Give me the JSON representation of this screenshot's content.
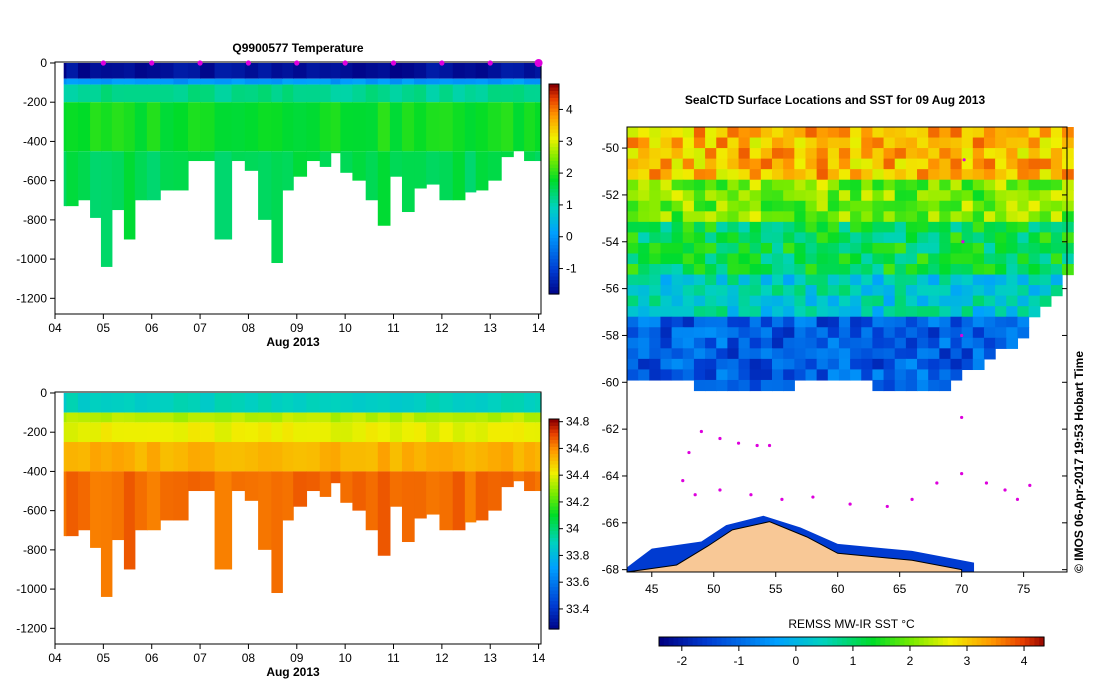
{
  "chart_data": [
    {
      "type": "heatmap",
      "title": "Q9900577  Temperature",
      "xlabel": "Aug 2013",
      "ylabel": "",
      "x_tick_labels": [
        "04",
        "05",
        "06",
        "07",
        "08",
        "09",
        "10",
        "11",
        "12",
        "13",
        "14"
      ],
      "y_ticks": [
        0,
        -200,
        -400,
        -600,
        -800,
        -1000,
        -1200
      ],
      "x_range_days": [
        4,
        14.05
      ],
      "y_range": [
        -1280,
        5
      ],
      "colorbar_ticks": [
        4,
        3,
        2,
        1,
        0,
        -1
      ],
      "colorbar_range": [
        -1.8,
        4.8
      ],
      "profile_times_days": [
        4.12,
        4.35,
        4.6,
        4.85,
        5.05,
        5.3,
        5.55,
        5.75,
        6.05,
        6.3,
        6.6,
        6.9,
        7.1,
        7.5,
        7.8,
        8.05,
        8.35,
        8.6,
        8.8,
        9.05,
        9.35,
        9.6,
        9.8,
        10.0,
        10.3,
        10.55,
        10.8,
        11.05,
        11.3,
        11.55,
        11.8,
        12.1,
        12.35,
        12.6,
        12.8,
        13.1,
        13.35,
        13.6,
        13.8,
        14.05
      ],
      "profile_max_depths": [
        -730,
        -730,
        -700,
        -790,
        -1040,
        -750,
        -900,
        -700,
        -700,
        -650,
        -650,
        -500,
        -500,
        -900,
        -500,
        -550,
        -800,
        -1020,
        -650,
        -580,
        -500,
        -530,
        -460,
        -560,
        -600,
        -700,
        -830,
        -580,
        -760,
        -640,
        -620,
        -700,
        -700,
        -660,
        -650,
        -600,
        -480,
        -450,
        -500,
        -500
      ],
      "surface_markers_days": [
        5,
        6,
        7,
        8,
        9,
        10,
        11,
        12,
        13,
        14
      ],
      "layers": [
        {
          "to_depth": -80,
          "value": -1.6
        },
        {
          "to_depth": -110,
          "value": 0.1
        },
        {
          "to_depth": -200,
          "value": 1.25
        },
        {
          "to_depth": -450,
          "value": 1.9
        },
        {
          "to_depth": -1300,
          "value": 1.6
        }
      ]
    },
    {
      "type": "heatmap",
      "title": "",
      "xlabel": "Aug 2013",
      "ylabel": "",
      "x_tick_labels": [
        "04",
        "05",
        "06",
        "07",
        "08",
        "09",
        "10",
        "11",
        "12",
        "13",
        "14"
      ],
      "y_ticks": [
        0,
        -200,
        -400,
        -600,
        -800,
        -1000,
        -1200
      ],
      "x_range_days": [
        4,
        14.05
      ],
      "y_range": [
        -1280,
        5
      ],
      "colorbar_ticks": [
        34.8,
        34.6,
        34.4,
        34.2,
        34,
        33.8,
        33.6,
        33.4
      ],
      "colorbar_range": [
        33.25,
        34.82
      ],
      "profile_times_days": [
        4.12,
        4.35,
        4.6,
        4.85,
        5.05,
        5.3,
        5.55,
        5.75,
        6.05,
        6.3,
        6.6,
        6.9,
        7.1,
        7.5,
        7.8,
        8.05,
        8.35,
        8.6,
        8.8,
        9.05,
        9.35,
        9.6,
        9.8,
        10.0,
        10.3,
        10.55,
        10.8,
        11.05,
        11.3,
        11.55,
        11.8,
        12.1,
        12.35,
        12.6,
        12.8,
        13.1,
        13.35,
        13.6,
        13.8,
        14.05
      ],
      "profile_max_depths": [
        -730,
        -730,
        -700,
        -790,
        -1040,
        -750,
        -900,
        -700,
        -700,
        -650,
        -650,
        -500,
        -500,
        -900,
        -500,
        -550,
        -800,
        -1020,
        -650,
        -580,
        -500,
        -530,
        -460,
        -560,
        -600,
        -700,
        -830,
        -580,
        -760,
        -640,
        -620,
        -700,
        -700,
        -660,
        -650,
        -600,
        -480,
        -450,
        -500,
        -500
      ],
      "layers": [
        {
          "to_depth": -100,
          "value": 33.9
        },
        {
          "to_depth": -150,
          "value": 34.35
        },
        {
          "to_depth": -250,
          "value": 34.42
        },
        {
          "to_depth": -400,
          "value": 34.55
        },
        {
          "to_depth": -1300,
          "value": 34.66
        }
      ]
    },
    {
      "type": "heatmap",
      "title": "SealCTD Surface Locations and SST for 09 Aug 2013",
      "xlabel": "",
      "ylabel": "",
      "x_tick_labels": [
        "45",
        "50",
        "55",
        "60",
        "65",
        "70",
        "75"
      ],
      "y_tick_labels": [
        "-50",
        "-52",
        "-54",
        "-56",
        "-58",
        "-60",
        "-62",
        "-64",
        "-66",
        "-68"
      ],
      "lon_range": [
        43,
        78.5
      ],
      "lat_range": [
        -68.1,
        -49.1
      ],
      "sst_bands_by_latitude": [
        {
          "lat_from": -49.1,
          "lat_to": -51,
          "value": 3.1
        },
        {
          "lat_from": -51,
          "lat_to": -52.8,
          "value": 2.0
        },
        {
          "lat_from": -52.8,
          "lat_to": -55,
          "value": 1.1
        },
        {
          "lat_from": -55,
          "lat_to": -57,
          "value": 0.3
        },
        {
          "lat_from": -57,
          "lat_to": -60.5,
          "value": -1.2
        }
      ],
      "seal_track_points": [
        {
          "lon": 49.0,
          "lat": -62.1
        },
        {
          "lon": 50.5,
          "lat": -62.4
        },
        {
          "lon": 52.0,
          "lat": -62.6
        },
        {
          "lon": 53.5,
          "lat": -62.7
        },
        {
          "lon": 54.5,
          "lat": -62.7
        },
        {
          "lon": 48.0,
          "lat": -63.0
        },
        {
          "lon": 47.5,
          "lat": -64.2
        },
        {
          "lon": 48.5,
          "lat": -64.8
        },
        {
          "lon": 50.5,
          "lat": -64.6
        },
        {
          "lon": 53.0,
          "lat": -64.8
        },
        {
          "lon": 55.5,
          "lat": -65.0
        },
        {
          "lon": 58.0,
          "lat": -64.9
        },
        {
          "lon": 61.0,
          "lat": -65.2
        },
        {
          "lon": 64.0,
          "lat": -65.3
        },
        {
          "lon": 66.0,
          "lat": -65.0
        },
        {
          "lon": 68.0,
          "lat": -64.3
        },
        {
          "lon": 70.0,
          "lat": -63.9
        },
        {
          "lon": 72.0,
          "lat": -64.3
        },
        {
          "lon": 73.5,
          "lat": -64.6
        },
        {
          "lon": 74.5,
          "lat": -65.0
        },
        {
          "lon": 75.5,
          "lat": -64.4
        },
        {
          "lon": 70.0,
          "lat": -61.5
        },
        {
          "lon": 70.0,
          "lat": -58.0
        },
        {
          "lon": 70.1,
          "lat": -54.0
        },
        {
          "lon": 70.2,
          "lat": -50.5
        }
      ]
    },
    {
      "type": "heatmap",
      "title": "REMSS MW-IR SST °C",
      "x_tick_labels": [
        "-2",
        "-1",
        "0",
        "1",
        "2",
        "3",
        "4"
      ],
      "range": [
        -2.4,
        4.35
      ]
    }
  ],
  "credit": "© IMOS 06-Apr-2017 19:53 Hobart Time",
  "colors": {
    "land": "#f8c896",
    "axis": "#000000",
    "marker": "#dd00dd",
    "no_data": "#ffffff"
  }
}
